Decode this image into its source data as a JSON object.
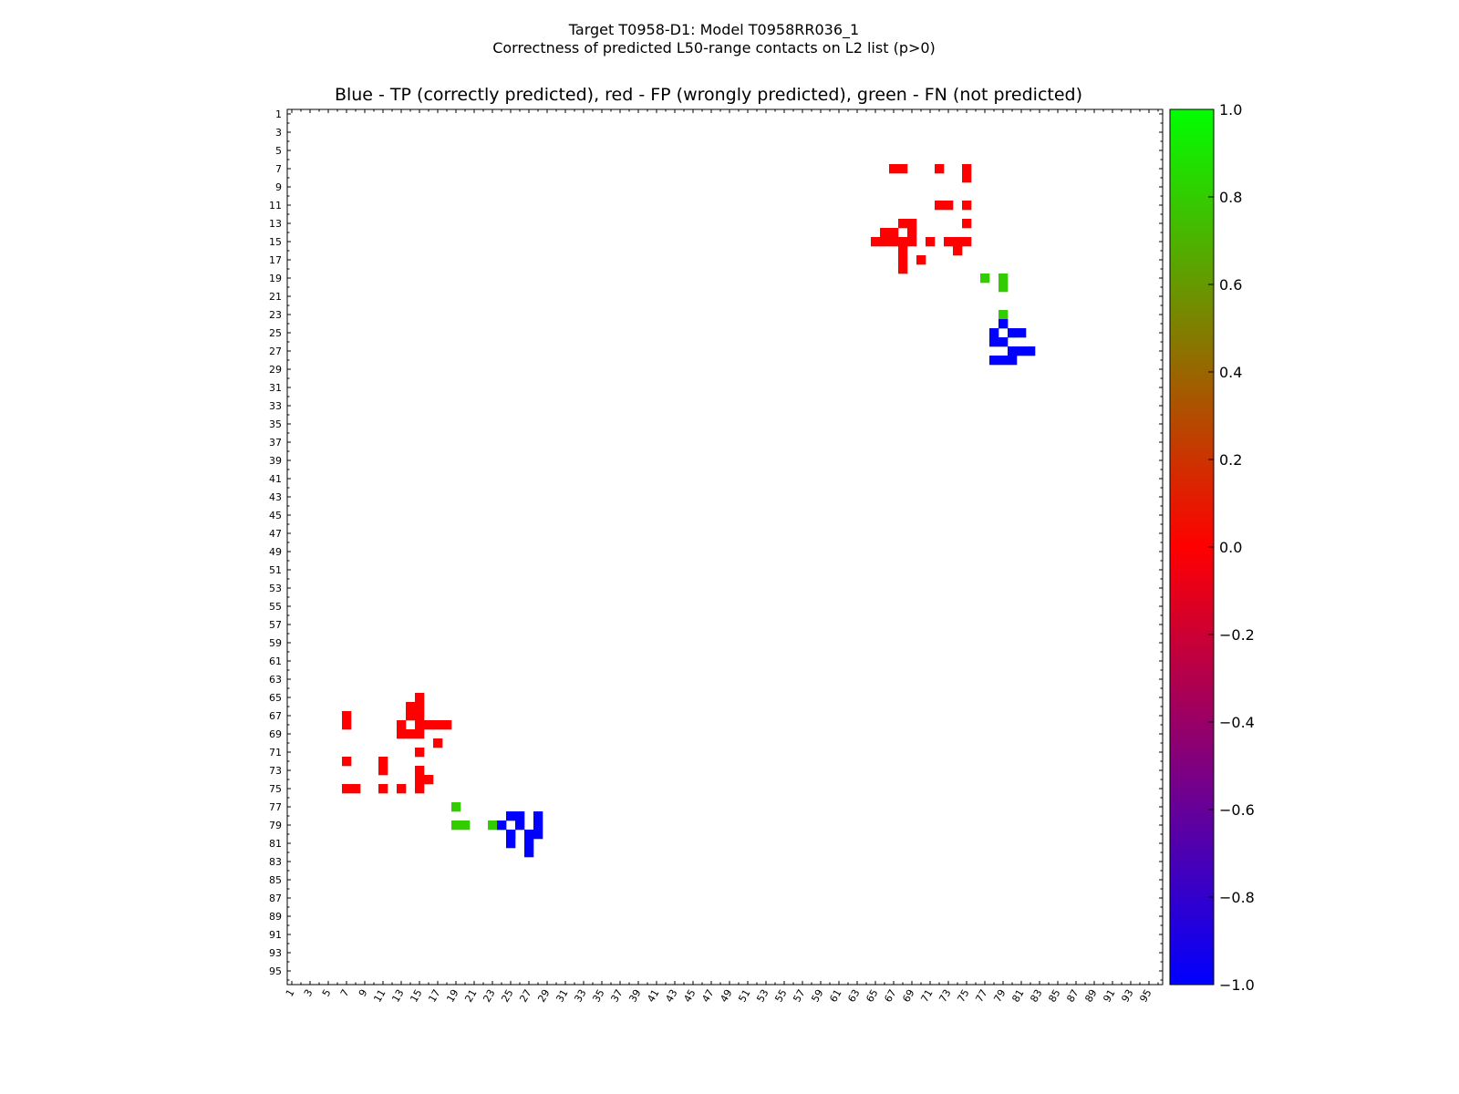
{
  "chart_data": {
    "type": "heatmap",
    "suptitle_line1": "Target T0958-D1: Model T0958RR036_1",
    "suptitle_line2": "Correctness of predicted L50-range contacts on L2 list (p>0)",
    "title": "Blue - TP (correctly predicted), red - FP (wrongly predicted), green - FN (not predicted)",
    "xlabel": "",
    "ylabel": "",
    "size": 96,
    "xlim": [
      1,
      96
    ],
    "ylim": [
      1,
      96
    ],
    "tick_labels": [
      "1",
      "3",
      "5",
      "7",
      "9",
      "11",
      "13",
      "15",
      "17",
      "19",
      "21",
      "23",
      "25",
      "27",
      "29",
      "31",
      "33",
      "35",
      "37",
      "39",
      "41",
      "43",
      "45",
      "47",
      "49",
      "51",
      "53",
      "55",
      "57",
      "59",
      "61",
      "63",
      "65",
      "67",
      "69",
      "71",
      "73",
      "75",
      "77",
      "79",
      "81",
      "83",
      "85",
      "87",
      "89",
      "91",
      "93",
      "95"
    ],
    "colorbar": {
      "range": [
        -1.0,
        1.0
      ],
      "gradient": [
        "#0000ff",
        "#ff0000",
        "#00ff00"
      ],
      "tick_values": [
        1.0,
        0.8,
        0.6,
        0.4,
        0.2,
        0.0,
        -0.2,
        -0.4,
        -0.6,
        -0.8,
        -1.0
      ],
      "tick_labels": [
        "1.0",
        "0.8",
        "0.6",
        "0.4",
        "0.2",
        "0.0",
        "−0.2",
        "−0.4",
        "−0.6",
        "−0.8",
        "−1.0"
      ]
    },
    "categories": {
      "TP": {
        "value": -1.0,
        "color": "#0000ff",
        "label": "correctly predicted"
      },
      "FP": {
        "value": 0.0,
        "color": "#ff0000",
        "label": "wrongly predicted"
      },
      "FN": {
        "value": 0.8,
        "color": "#33cc00",
        "label": "not predicted"
      }
    },
    "contacts": {
      "TP": [
        [
          79,
          24
        ],
        [
          79,
          26
        ],
        [
          78,
          25
        ],
        [
          78,
          26
        ],
        [
          80,
          25
        ],
        [
          81,
          25
        ],
        [
          80,
          27
        ],
        [
          79,
          28
        ],
        [
          82,
          27
        ],
        [
          81,
          27
        ],
        [
          80,
          28
        ],
        [
          78,
          28
        ]
      ],
      "FP": [
        [
          67,
          7
        ],
        [
          72,
          7
        ],
        [
          68,
          7
        ],
        [
          75,
          7
        ],
        [
          75,
          8
        ],
        [
          75,
          13
        ],
        [
          75,
          15
        ],
        [
          73,
          11
        ],
        [
          72,
          11
        ],
        [
          75,
          11
        ],
        [
          71,
          15
        ],
        [
          73,
          15
        ],
        [
          74,
          15
        ],
        [
          74,
          16
        ],
        [
          70,
          17
        ],
        [
          69,
          15
        ],
        [
          68,
          17
        ],
        [
          68,
          13
        ],
        [
          69,
          13
        ],
        [
          67,
          14
        ],
        [
          66,
          14
        ],
        [
          65,
          15
        ],
        [
          66,
          15
        ],
        [
          67,
          15
        ],
        [
          68,
          15
        ],
        [
          68,
          16
        ],
        [
          68,
          18
        ],
        [
          69,
          14
        ],
        [
          80,
          27
        ]
      ],
      "FN": [
        [
          77,
          19
        ],
        [
          79,
          19
        ],
        [
          79,
          20
        ],
        [
          79,
          23
        ],
        [
          79,
          24
        ],
        [
          80,
          25
        ]
      ]
    }
  }
}
